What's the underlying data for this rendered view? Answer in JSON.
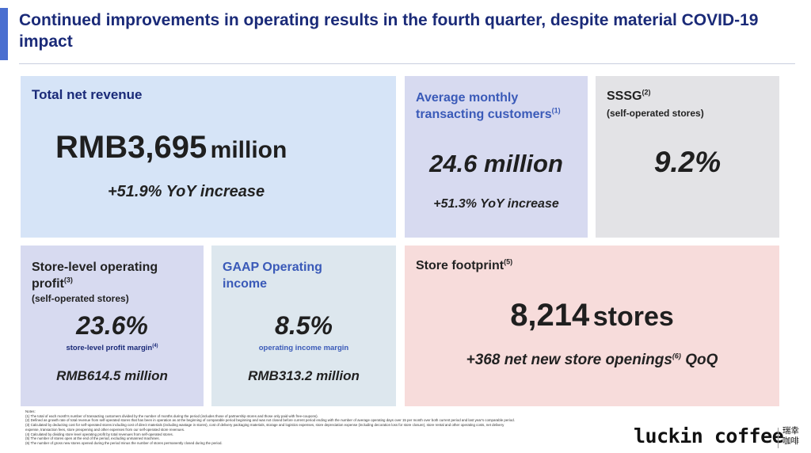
{
  "title": "Continued improvements in operating results in the fourth quarter, despite material COVID-19 impact",
  "cards": {
    "revenue": {
      "heading": "Total net revenue",
      "big_value": "RMB3,695",
      "big_unit": "million",
      "sub": "+51.9% YoY increase"
    },
    "customers": {
      "heading_l1": "Average monthly",
      "heading_l2": "transacting customers",
      "heading_sup": "(1)",
      "big_value": "24.6 million",
      "sub": "+51.3% YoY increase"
    },
    "sssg": {
      "heading": "SSSG",
      "heading_sup": "(2)",
      "heading_sub": "(self-operated stores)",
      "big_value": "9.2%"
    },
    "store_profit": {
      "heading_l1": "Store-level operating",
      "heading_l2": "profit",
      "heading_sup": "(3)",
      "heading_sub": "(self-operated stores)",
      "big_value": "23.6%",
      "caption": "store-level profit margin",
      "caption_sup": "(4)",
      "amount": "RMB614.5 million"
    },
    "gaap": {
      "heading_l1": "GAAP Operating",
      "heading_l2": "income",
      "big_value": "8.5%",
      "caption": "operating income margin",
      "amount": "RMB313.2 million"
    },
    "footprint": {
      "heading": "Store footprint",
      "heading_sup": "(5)",
      "big_value": "8,214",
      "big_unit": "stores",
      "sub_main": "+368 net new store openings",
      "sub_sup": "(6)",
      "sub_tail": "QoQ"
    }
  },
  "notes": {
    "label": "Notes:",
    "lines": [
      "(1) The total of each month's number of transacting customers divided by the number of months during the period (includes those of partnership stores and those only paid with free-coupons).",
      "(2) Defined as growth rate of total revenue from self-operated stores that has been in operation as at the beginning of comparable period beginning and was not closed before current period ending with the number of average operating days over 15 per month over both current period and last year's comparable period.",
      "(3) Calculated by deducting cost for self-operated stores including cost of direct materials (including wastage in stores), cost of delivery packaging materials, storage and logistics expenses, store depreciation expense (including decoration loss for store closure), store rental and other operating costs, net delivery",
      "expense, transaction fees, store preopening and other expenses from our self-operated store revenues.",
      "(4) Calculated by dividing store level operating profit by total revenues from self-operated stores.",
      "(5) The number of stores open at the end of the period, excluding unmanned machines.",
      "(6) The number of gross new stores opened during the period minus the number of stores permanently closed during the period."
    ]
  },
  "logo": {
    "text": "luckin coffee",
    "cn_l1": "瑞幸",
    "cn_l2": "咖啡"
  },
  "colors": {
    "title": "#1a2a78",
    "accent": "#4a6fd0",
    "card_revenue": "#d6e4f7",
    "card_customers": "#d7daf0",
    "card_sssg": "#e3e3e6",
    "card_store_profit": "#d7daf0",
    "card_gaap": "#dde7ee",
    "card_footprint": "#f7dcdb"
  }
}
